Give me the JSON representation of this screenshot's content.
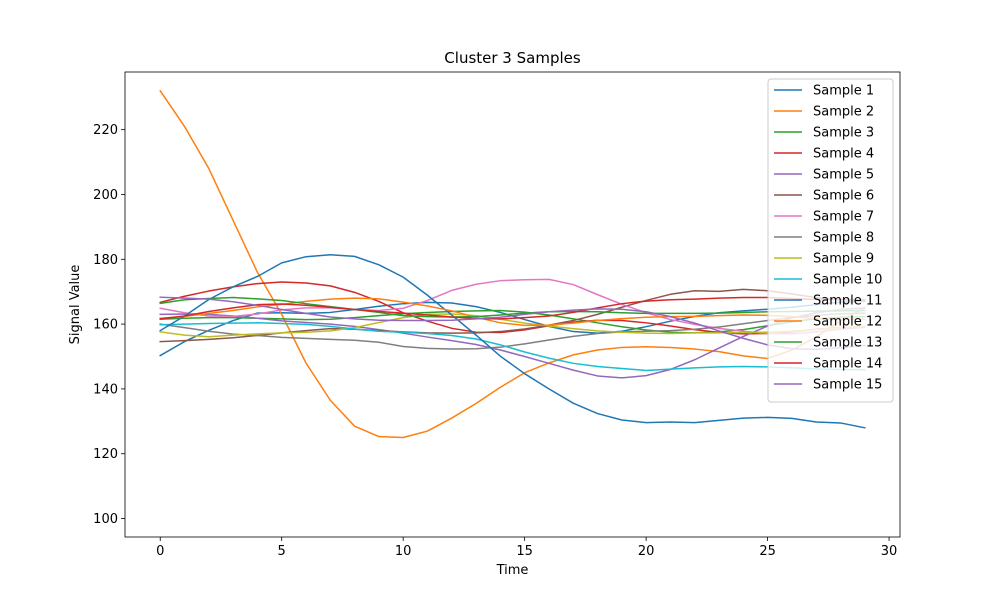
{
  "chart_data": {
    "type": "line",
    "title": "Cluster 3 Samples",
    "xlabel": "Time",
    "ylabel": "Signal Value",
    "xlim": [
      -1.45,
      30.45
    ],
    "ylim": [
      94.3,
      237.8
    ],
    "xticks": [
      0,
      5,
      10,
      15,
      20,
      25,
      30
    ],
    "yticks": [
      100,
      120,
      140,
      160,
      180,
      200,
      220
    ],
    "grid": false,
    "legend_position": "top-right",
    "x": [
      0,
      1,
      2,
      3,
      4,
      5,
      6,
      7,
      8,
      9,
      10,
      11,
      12,
      13,
      14,
      15,
      16,
      17,
      18,
      19,
      20,
      21,
      22,
      23,
      24,
      25,
      26,
      27,
      28,
      29
    ],
    "series": [
      {
        "name": "Sample 1",
        "color": "#1f77b4",
        "values": [
          150.3,
          154.6,
          158.1,
          161.1,
          163.4,
          163.5,
          163.3,
          163.6,
          164.5,
          165.5,
          166.3,
          166.7,
          166.5,
          165.4,
          163.6,
          161.4,
          159.3,
          157.7,
          157.2,
          157.8,
          159.2,
          160.9,
          162.4,
          163.5,
          164.1,
          164.6,
          165.2,
          166.0,
          166.8,
          167.0
        ]
      },
      {
        "name": "Sample 2",
        "color": "#ff7f0e",
        "values": [
          232.0,
          221.0,
          208.0,
          192.0,
          176.0,
          163.0,
          148.0,
          136.5,
          128.5,
          125.3,
          125.0,
          127.0,
          131.0,
          135.5,
          140.5,
          145.0,
          148.0,
          150.5,
          152.0,
          152.8,
          153.0,
          152.8,
          152.3,
          151.5,
          150.2,
          149.4,
          152.0,
          156.0,
          161.0,
          165.0
        ]
      },
      {
        "name": "Sample 3",
        "color": "#2ca02c",
        "values": [
          161.5,
          161.8,
          162.0,
          162.0,
          161.8,
          161.6,
          161.4,
          161.5,
          162.0,
          162.6,
          163.2,
          163.6,
          163.9,
          164.1,
          164.2,
          163.7,
          162.8,
          161.6,
          160.4,
          159.2,
          158.2,
          157.5,
          157.3,
          157.6,
          158.3,
          159.5,
          160.7,
          161.7,
          162.1,
          162.3
        ]
      },
      {
        "name": "Sample 4",
        "color": "#d62728",
        "values": [
          166.7,
          168.6,
          170.2,
          171.5,
          172.5,
          173.0,
          172.7,
          171.8,
          169.8,
          167.0,
          163.5,
          160.9,
          158.7,
          157.5,
          157.4,
          158.2,
          159.5,
          160.6,
          161.2,
          161.1,
          160.4,
          159.4,
          158.3,
          157.4,
          157.0,
          157.1,
          157.6,
          158.4,
          159.0,
          159.2
        ]
      },
      {
        "name": "Sample 5",
        "color": "#9467bd",
        "values": [
          163.0,
          163.1,
          163.0,
          162.5,
          161.8,
          161.0,
          160.5,
          160.0,
          159.3,
          158.3,
          157.2,
          156.0,
          154.9,
          153.7,
          152.0,
          150.0,
          147.9,
          145.8,
          144.0,
          143.4,
          144.1,
          146.0,
          149.0,
          152.6,
          156.2,
          159.4,
          161.9,
          163.5,
          164.5,
          165.0
        ]
      },
      {
        "name": "Sample 6",
        "color": "#8c564b",
        "values": [
          154.6,
          154.9,
          155.3,
          155.8,
          156.5,
          157.3,
          158.0,
          158.6,
          158.4,
          158.0,
          157.6,
          157.3,
          157.2,
          157.3,
          157.7,
          158.5,
          159.7,
          161.1,
          163.0,
          165.2,
          167.3,
          169.2,
          170.3,
          170.1,
          170.7,
          170.3,
          169.3,
          168.2,
          167.5,
          167.3
        ]
      },
      {
        "name": "Sample 7",
        "color": "#e377c2",
        "values": [
          164.9,
          163.5,
          162.5,
          162.4,
          163.1,
          164.4,
          165.0,
          165.0,
          164.5,
          164.2,
          164.9,
          167.3,
          170.4,
          172.3,
          173.4,
          173.7,
          173.8,
          172.2,
          169.1,
          166.1,
          163.5,
          161.4,
          159.9,
          158.7,
          157.8,
          157.1,
          157.0,
          157.6,
          158.4,
          159.0
        ]
      },
      {
        "name": "Sample 8",
        "color": "#7f7f7f",
        "values": [
          160.0,
          158.9,
          157.8,
          156.9,
          156.5,
          155.9,
          155.6,
          155.3,
          155.0,
          154.4,
          153.1,
          152.5,
          152.3,
          152.4,
          152.9,
          153.9,
          155.1,
          156.2,
          157.1,
          157.6,
          157.8,
          158.0,
          158.4,
          159.1,
          160.1,
          161.1,
          162.0,
          162.7,
          163.2,
          163.4
        ]
      },
      {
        "name": "Sample 9",
        "color": "#bcbd22",
        "values": [
          157.6,
          156.6,
          156.1,
          156.6,
          157.0,
          157.3,
          157.5,
          157.9,
          158.9,
          160.5,
          162.0,
          163.0,
          163.1,
          162.6,
          161.5,
          160.3,
          159.4,
          158.6,
          157.9,
          157.5,
          157.2,
          157.1,
          157.3,
          157.3,
          157.4,
          157.5,
          157.8,
          158.3,
          158.9,
          159.3
        ]
      },
      {
        "name": "Sample 10",
        "color": "#17becf",
        "values": [
          159.8,
          160.0,
          160.2,
          160.3,
          160.4,
          160.2,
          159.9,
          159.3,
          158.5,
          157.8,
          157.5,
          157.1,
          156.5,
          155.4,
          153.6,
          151.4,
          149.5,
          147.9,
          146.9,
          146.3,
          145.7,
          146.1,
          146.5,
          146.8,
          146.9,
          146.8,
          146.5,
          146.2,
          146.0,
          145.9
        ]
      },
      {
        "name": "Sample 11",
        "color": "#1f77b4",
        "values": [
          158.0,
          162.5,
          167.6,
          171.5,
          174.7,
          178.9,
          180.8,
          181.4,
          180.9,
          178.3,
          174.5,
          168.9,
          162.8,
          156.6,
          150.1,
          144.7,
          140.0,
          135.6,
          132.4,
          130.4,
          129.6,
          129.8,
          129.6,
          130.3,
          131.0,
          131.2,
          130.9,
          129.8,
          129.5,
          128.0
        ]
      },
      {
        "name": "Sample 12",
        "color": "#ff7f0e",
        "values": [
          161.8,
          162.4,
          163.3,
          164.2,
          165.3,
          166.1,
          167.0,
          167.7,
          168.0,
          167.8,
          166.8,
          165.6,
          164.1,
          162.1,
          160.4,
          159.6,
          159.7,
          160.3,
          161.1,
          161.7,
          162.1,
          162.3,
          162.4,
          162.6,
          162.8,
          162.7,
          162.3,
          161.7,
          161.5,
          161.5
        ]
      },
      {
        "name": "Sample 13",
        "color": "#2ca02c",
        "values": [
          166.4,
          167.5,
          167.9,
          168.2,
          167.8,
          167.3,
          166.3,
          165.4,
          164.5,
          163.6,
          162.6,
          162.3,
          162.2,
          162.3,
          162.8,
          163.4,
          163.8,
          163.9,
          163.8,
          163.5,
          163.3,
          163.3,
          163.3,
          163.4,
          163.6,
          163.8,
          163.9,
          164.0,
          164.1,
          164.2
        ]
      },
      {
        "name": "Sample 14",
        "color": "#d62728",
        "values": [
          161.6,
          162.5,
          163.9,
          165.0,
          166.0,
          166.2,
          165.8,
          165.2,
          164.5,
          163.9,
          163.4,
          162.8,
          162.2,
          161.7,
          161.6,
          162.0,
          162.5,
          163.6,
          165.0,
          166.3,
          167.1,
          167.5,
          167.7,
          168.0,
          168.2,
          168.2,
          167.9,
          167.6,
          167.6,
          167.5
        ]
      },
      {
        "name": "Sample 15",
        "color": "#9467bd",
        "values": [
          168.3,
          168.0,
          167.7,
          166.9,
          165.8,
          164.5,
          163.3,
          162.2,
          161.6,
          161.2,
          161.1,
          161.1,
          161.2,
          161.6,
          162.1,
          163.0,
          163.8,
          164.3,
          164.7,
          164.6,
          163.8,
          162.3,
          160.3,
          157.9,
          155.6,
          153.6,
          152.4,
          152.2,
          152.7,
          153.4
        ]
      }
    ]
  }
}
